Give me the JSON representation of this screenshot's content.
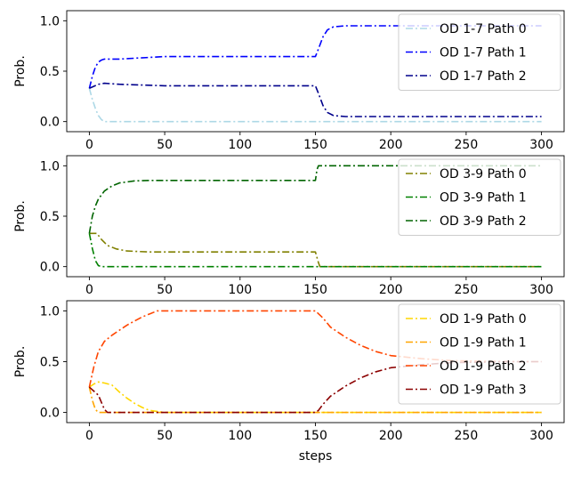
{
  "chart_data": [
    {
      "type": "line",
      "ylabel": "Prob.",
      "xlabel": "",
      "xlim": [
        -15,
        315
      ],
      "ylim": [
        -0.1,
        1.1
      ],
      "xticks": [
        0,
        50,
        100,
        150,
        200,
        250,
        300
      ],
      "yticks": [
        0.0,
        0.5,
        1.0
      ],
      "xtick_labels": [
        "0",
        "50",
        "100",
        "150",
        "200",
        "250",
        "300"
      ],
      "ytick_labels": [
        "0.0",
        "0.5",
        "1.0"
      ],
      "legend_position": "top-right",
      "series": [
        {
          "name": "OD 1-7 Path 0",
          "color": "#add8e6",
          "x": [
            0,
            2,
            4,
            6,
            8,
            10,
            150,
            300
          ],
          "y": [
            0.33,
            0.22,
            0.13,
            0.06,
            0.02,
            0.0,
            0.0,
            0.0
          ]
        },
        {
          "name": "OD 1-7 Path 1",
          "color": "#0000ff",
          "x": [
            0,
            2,
            4,
            6,
            8,
            10,
            20,
            50,
            100,
            150,
            152,
            155,
            158,
            162,
            170,
            180,
            300
          ],
          "y": [
            0.33,
            0.45,
            0.54,
            0.59,
            0.61,
            0.62,
            0.62,
            0.645,
            0.645,
            0.645,
            0.72,
            0.84,
            0.91,
            0.94,
            0.95,
            0.95,
            0.95
          ]
        },
        {
          "name": "OD 1-7 Path 2",
          "color": "#00008b",
          "x": [
            0,
            3,
            6,
            10,
            20,
            50,
            100,
            150,
            152,
            155,
            158,
            162,
            170,
            180,
            300
          ],
          "y": [
            0.33,
            0.35,
            0.37,
            0.38,
            0.37,
            0.355,
            0.355,
            0.355,
            0.28,
            0.16,
            0.09,
            0.06,
            0.05,
            0.05,
            0.05
          ]
        }
      ]
    },
    {
      "type": "line",
      "ylabel": "Prob.",
      "xlabel": "",
      "xlim": [
        -15,
        315
      ],
      "ylim": [
        -0.1,
        1.1
      ],
      "xticks": [
        0,
        50,
        100,
        150,
        200,
        250,
        300
      ],
      "yticks": [
        0.0,
        0.5,
        1.0
      ],
      "xtick_labels": [
        "0",
        "50",
        "100",
        "150",
        "200",
        "250",
        "300"
      ],
      "ytick_labels": [
        "0.0",
        "0.5",
        "1.0"
      ],
      "legend_position": "top-right",
      "series": [
        {
          "name": "OD 3-9 Path 0",
          "color": "#808000",
          "x": [
            0,
            3,
            5,
            8,
            12,
            18,
            25,
            40,
            60,
            100,
            150,
            152,
            153,
            300
          ],
          "y": [
            0.33,
            0.33,
            0.33,
            0.27,
            0.21,
            0.175,
            0.155,
            0.145,
            0.145,
            0.145,
            0.145,
            0.04,
            0.0,
            0.0
          ]
        },
        {
          "name": "OD 3-9 Path 1",
          "color": "#008000",
          "x": [
            0,
            2,
            4,
            6,
            8,
            150,
            300
          ],
          "y": [
            0.33,
            0.18,
            0.06,
            0.01,
            0.0,
            0.0,
            0.0
          ]
        },
        {
          "name": "OD 3-9 Path 2",
          "color": "#006400",
          "x": [
            0,
            2,
            4,
            6,
            10,
            15,
            20,
            30,
            40,
            60,
            100,
            150,
            151,
            152,
            153,
            300
          ],
          "y": [
            0.33,
            0.5,
            0.6,
            0.67,
            0.75,
            0.8,
            0.83,
            0.85,
            0.855,
            0.855,
            0.855,
            0.855,
            0.96,
            1.0,
            1.0,
            1.0
          ]
        }
      ]
    },
    {
      "type": "line",
      "ylabel": "Prob.",
      "xlabel": "steps",
      "xlim": [
        -15,
        315
      ],
      "ylim": [
        -0.1,
        1.1
      ],
      "xticks": [
        0,
        50,
        100,
        150,
        200,
        250,
        300
      ],
      "yticks": [
        0.0,
        0.5,
        1.0
      ],
      "xtick_labels": [
        "0",
        "50",
        "100",
        "150",
        "200",
        "250",
        "300"
      ],
      "ytick_labels": [
        "0.0",
        "0.5",
        "1.0"
      ],
      "legend_position": "top-right",
      "series": [
        {
          "name": "OD 1-9 Path 0",
          "color": "#ffd700",
          "x": [
            0,
            3,
            6,
            10,
            15,
            20,
            25,
            30,
            35,
            40,
            45,
            50,
            150,
            300
          ],
          "y": [
            0.25,
            0.28,
            0.3,
            0.29,
            0.27,
            0.2,
            0.14,
            0.09,
            0.05,
            0.02,
            0.01,
            0.0,
            0.0,
            0.0
          ]
        },
        {
          "name": "OD 1-9 Path 1",
          "color": "#ffa500",
          "x": [
            0,
            2,
            4,
            6,
            150,
            300
          ],
          "y": [
            0.25,
            0.12,
            0.03,
            0.0,
            0.0,
            0.0
          ]
        },
        {
          "name": "OD 1-9 Path 2",
          "color": "#ff4500",
          "x": [
            0,
            3,
            6,
            10,
            15,
            20,
            25,
            30,
            35,
            40,
            45,
            50,
            100,
            150,
            155,
            160,
            170,
            180,
            190,
            200,
            220,
            240,
            260,
            280,
            300
          ],
          "y": [
            0.25,
            0.45,
            0.6,
            0.7,
            0.76,
            0.81,
            0.86,
            0.9,
            0.94,
            0.97,
            1.0,
            1.0,
            1.0,
            1.0,
            0.93,
            0.84,
            0.74,
            0.66,
            0.6,
            0.56,
            0.53,
            0.51,
            0.505,
            0.5,
            0.5
          ]
        },
        {
          "name": "OD 1-9 Path 3",
          "color": "#8b0000",
          "x": [
            0,
            3,
            6,
            8,
            10,
            12,
            150,
            152,
            155,
            160,
            170,
            180,
            190,
            200,
            220,
            240,
            260,
            280,
            300
          ],
          "y": [
            0.25,
            0.21,
            0.17,
            0.1,
            0.03,
            0.0,
            0.0,
            0.02,
            0.08,
            0.16,
            0.26,
            0.34,
            0.4,
            0.44,
            0.47,
            0.49,
            0.495,
            0.5,
            0.5
          ]
        }
      ]
    }
  ]
}
